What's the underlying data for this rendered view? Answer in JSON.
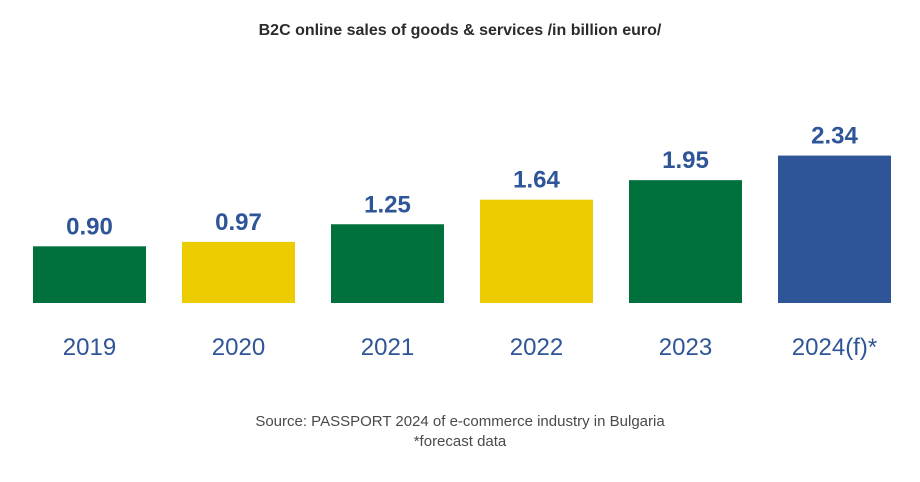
{
  "chart_data": {
    "type": "bar",
    "title": "B2C online sales of goods & services /in billion euro/",
    "categories": [
      "2019",
      "2020",
      "2021",
      "2022",
      "2023",
      "2024(f)*"
    ],
    "values": [
      0.9,
      0.97,
      1.25,
      1.64,
      1.95,
      2.34
    ],
    "value_labels": [
      "0.90",
      "0.97",
      "1.25",
      "1.64",
      "1.95",
      "2.34"
    ],
    "bar_colors": [
      "#00703c",
      "#eccc00",
      "#00703c",
      "#eccc00",
      "#00703c",
      "#2e5597"
    ],
    "label_color": "#2e5597",
    "xlabel": "",
    "ylabel": "",
    "ylim": [
      0,
      2.5
    ],
    "grid": false,
    "legend": "none"
  },
  "footer": {
    "source": "Source: PASSPORT 2024 of e-commerce industry in Bulgaria",
    "note": "*forecast data"
  }
}
